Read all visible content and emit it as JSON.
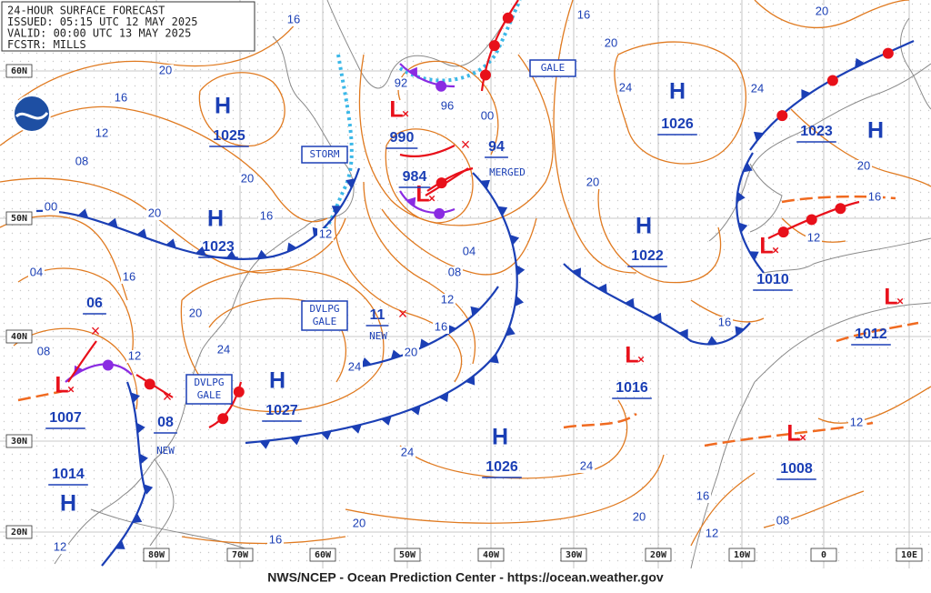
{
  "header": {
    "lines": [
      "24-HOUR SURFACE FORECAST",
      "ISSUED: 05:15 UTC 12 MAY 2025",
      "VALID: 00:00 UTC 13 MAY 2025",
      "FCSTR: MILLS"
    ]
  },
  "footer": "NWS/NCEP - Ocean Prediction Center - https://ocean.weather.gov",
  "lat_labels": [
    "60N",
    "50N",
    "40N",
    "30N",
    "20N"
  ],
  "lon_labels": [
    "80W",
    "70W",
    "60W",
    "50W",
    "40W",
    "30W",
    "20W",
    "10W",
    "0",
    "10E"
  ],
  "centers": [
    {
      "symbol": "H",
      "value": "1025"
    },
    {
      "symbol": "H",
      "value": "1023"
    },
    {
      "symbol": "H",
      "value": "1027"
    },
    {
      "symbol": "H",
      "value": "1026"
    },
    {
      "symbol": "H",
      "value": "1022"
    },
    {
      "symbol": "H",
      "value": "1023"
    },
    {
      "symbol": "H",
      "value": "1026"
    },
    {
      "symbol": "H",
      "value": "1014"
    },
    {
      "symbol": "L",
      "value": "990"
    },
    {
      "symbol": "L",
      "value": "984"
    },
    {
      "symbol": "L",
      "value": "1007"
    },
    {
      "symbol": "L",
      "value": "1016"
    },
    {
      "symbol": "L",
      "value": "1010"
    },
    {
      "symbol": "L",
      "value": "1012"
    },
    {
      "symbol": "L",
      "value": "1008"
    }
  ],
  "forecast_values": [
    "94",
    "11",
    "06",
    "08"
  ],
  "warnings": [
    {
      "lines": [
        "STORM"
      ]
    },
    {
      "lines": [
        "GALE"
      ]
    },
    {
      "lines": [
        "DVLPG",
        "GALE"
      ]
    },
    {
      "lines": [
        "DVLPG",
        "GALE"
      ]
    }
  ],
  "notes": [
    "MERGED",
    "NEW",
    "NEW"
  ],
  "isobar_labels": [
    "16",
    "20",
    "16",
    "12",
    "08",
    "20",
    "16",
    "20",
    "00",
    "04",
    "16",
    "20",
    "08",
    "12",
    "24",
    "12",
    "04",
    "08",
    "12",
    "16",
    "20",
    "24",
    "24",
    "24",
    "20",
    "20",
    "16",
    "12",
    "16",
    "20",
    "24",
    "20",
    "24",
    "20",
    "20",
    "16",
    "12",
    "16",
    "12",
    "16",
    "12",
    "08",
    "92",
    "96",
    "00"
  ]
}
